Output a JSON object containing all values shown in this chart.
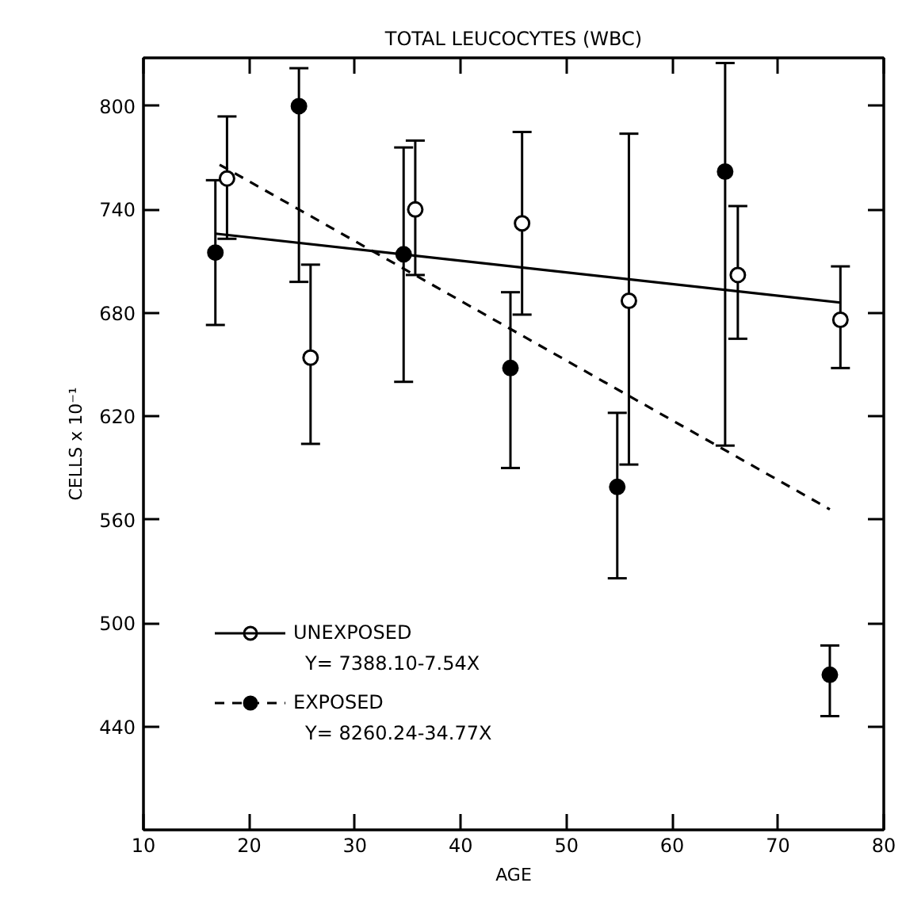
{
  "chart_data": {
    "type": "scatter",
    "title": "TOTAL LEUCOCYTES (WBC)",
    "xlabel": "AGE",
    "ylabel": "CELLS x 10⁻¹",
    "xlim": [
      10,
      80
    ],
    "xticks": [
      10,
      20,
      30,
      40,
      50,
      60,
      70,
      80
    ],
    "ylim": [
      380,
      828
    ],
    "yticks": [
      440,
      500,
      560,
      620,
      680,
      740,
      800
    ],
    "grid": false,
    "legend": "bottom left",
    "annotations": [
      "Y= 7388.10-7.54X",
      "Y= 8260.24-34.77X"
    ],
    "series": [
      {
        "name": "UNEXPOSED",
        "marker": "circle",
        "color": "#ffffff",
        "x": [
          17.9,
          25.8,
          35.7,
          45.8,
          55.9,
          66.2,
          75.9
        ],
        "values": [
          758,
          654,
          740,
          732,
          687,
          702,
          676
        ],
        "errors": [
          [
            723,
            794
          ],
          [
            604,
            708
          ],
          [
            702,
            780
          ],
          [
            679,
            785
          ],
          [
            592,
            784
          ],
          [
            665,
            742
          ],
          [
            648,
            707
          ]
        ]
      },
      {
        "type": "line",
        "line_style": "solid",
        "color": "#000000",
        "x": [
          16.8,
          75.9
        ],
        "values": [
          726,
          686
        ]
      },
      {
        "name": "EXPOSED",
        "marker": "circle",
        "color": "#000000",
        "x": [
          16.8,
          24.7,
          34.6,
          44.7,
          54.8,
          65.0,
          74.9
        ],
        "values": [
          715,
          800,
          714,
          648,
          579,
          762,
          470
        ],
        "errors": [
          [
            673,
            757
          ],
          [
            698,
            822
          ],
          [
            640,
            776
          ],
          [
            590,
            692
          ],
          [
            526,
            622
          ],
          [
            603,
            825
          ],
          [
            446,
            487
          ]
        ]
      },
      {
        "type": "line",
        "line_style": "dashed",
        "color": "#000000",
        "x": [
          17.2,
          74.9
        ],
        "values": [
          766,
          566
        ]
      }
    ]
  }
}
